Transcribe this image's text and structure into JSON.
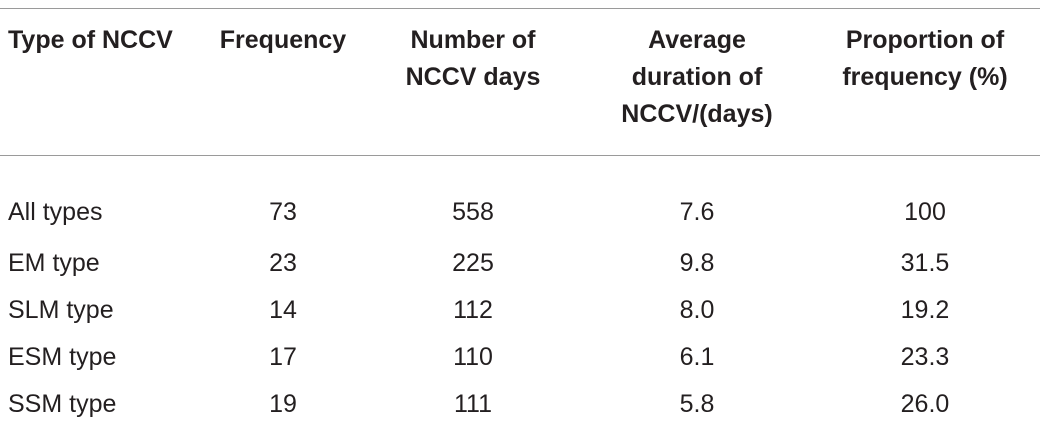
{
  "table": {
    "headers": [
      [
        "Type of NCCV"
      ],
      [
        "Frequency"
      ],
      [
        "Number of",
        "NCCV days"
      ],
      [
        "Average",
        "duration of",
        "NCCV/(days)"
      ],
      [
        "Proportion of",
        "frequency (%)"
      ]
    ],
    "rows": [
      [
        "All types",
        "73",
        "558",
        "7.6",
        "100"
      ],
      [
        "EM type",
        "23",
        "225",
        "9.8",
        "31.5"
      ],
      [
        "SLM type",
        "14",
        "112",
        "8.0",
        "19.2"
      ],
      [
        "ESM type",
        "17",
        "110",
        "6.1",
        "23.3"
      ],
      [
        "SSM type",
        "19",
        "111",
        "5.8",
        "26.0"
      ]
    ]
  }
}
